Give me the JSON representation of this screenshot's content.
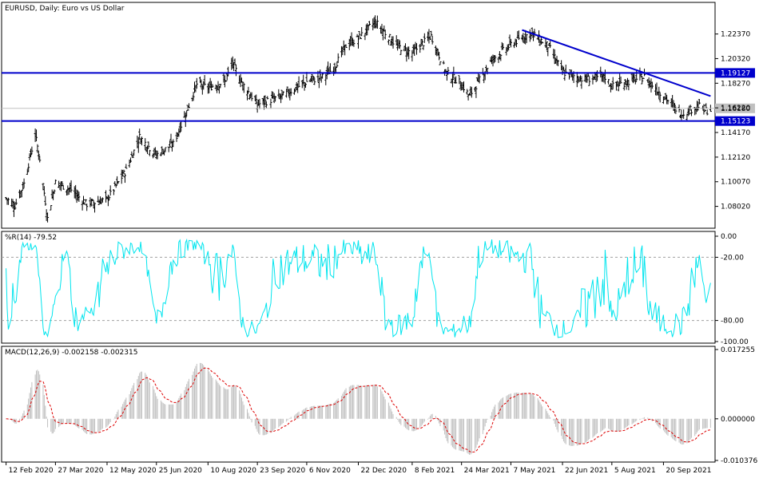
{
  "chart_data": [
    {
      "type": "ohlc",
      "title": "EURUSD, Daily:  Euro vs US Dollar",
      "ylim": [
        1.062,
        1.25
      ],
      "y_ticks": [
        "1.22370",
        "1.20320",
        "1.18270",
        "1.16220",
        "1.14170",
        "1.12120",
        "1.10070",
        "1.08020"
      ],
      "x_ticks": [
        "12 Feb 2020",
        "27 Mar 2020",
        "12 May 2020",
        "25 Jun 2020",
        "10 Aug 2020",
        "23 Sep 2020",
        "6 Nov 2020",
        "22 Dec 2020",
        "8 Feb 2021",
        "24 Mar 2021",
        "7 May 2021",
        "22 Jun 2021",
        "5 Aug 2021",
        "20 Sep 2021"
      ],
      "series": [
        {
          "close_path": [
            [
              "12 Feb 2020",
              1.087
            ],
            [
              "20 Feb 2020",
              1.081
            ],
            [
              "28 Feb 2020",
              1.099
            ],
            [
              "9 Mar 2020",
              1.14
            ],
            [
              "13 Mar 2020",
              1.12
            ],
            [
              "20 Mar 2020",
              1.07
            ],
            [
              "27 Mar 2020",
              1.1
            ],
            [
              "10 Apr 2020",
              1.094
            ],
            [
              "24 Apr 2020",
              1.082
            ],
            [
              "12 May 2020",
              1.086
            ],
            [
              "29 May 2020",
              1.11
            ],
            [
              "10 Jun 2020",
              1.138
            ],
            [
              "25 Jun 2020",
              1.123
            ],
            [
              "10 Jul 2020",
              1.132
            ],
            [
              "22 Jul 2020",
              1.159
            ],
            [
              "31 Jul 2020",
              1.182
            ],
            [
              "10 Aug 2020",
              1.179
            ],
            [
              "25 Aug 2020",
              1.184
            ],
            [
              "1 Sep 2020",
              1.199
            ],
            [
              "10 Sep 2020",
              1.182
            ],
            [
              "23 Sep 2020",
              1.165
            ],
            [
              "15 Oct 2020",
              1.172
            ],
            [
              "6 Nov 2020",
              1.184
            ],
            [
              "20 Nov 2020",
              1.188
            ],
            [
              "30 Nov 2020",
              1.195
            ],
            [
              "11 Dec 2020",
              1.214
            ],
            [
              "22 Dec 2020",
              1.22
            ],
            [
              "6 Jan 2021",
              1.234
            ],
            [
              "25 Jan 2021",
              1.214
            ],
            [
              "8 Feb 2021",
              1.208
            ],
            [
              "25 Feb 2021",
              1.222
            ],
            [
              "10 Mar 2021",
              1.192
            ],
            [
              "24 Mar 2021",
              1.182
            ],
            [
              "31 Mar 2021",
              1.172
            ],
            [
              "20 Apr 2021",
              1.202
            ],
            [
              "7 May 2021",
              1.215
            ],
            [
              "25 May 2021",
              1.225
            ],
            [
              "10 Jun 2021",
              1.213
            ],
            [
              "22 Jun 2021",
              1.192
            ],
            [
              "10 Jul 2021",
              1.186
            ],
            [
              "30 Jul 2021",
              1.188
            ],
            [
              "5 Aug 2021",
              1.18
            ],
            [
              "3 Sep 2021",
              1.188
            ],
            [
              "20 Sep 2021",
              1.172
            ],
            [
              "6 Oct 2021",
              1.157
            ],
            [
              "21 Oct 2021",
              1.164
            ],
            [
              "28 Oct 2021",
              1.16
            ]
          ]
        }
      ],
      "horizontal_lines": [
        {
          "label": "1.19127",
          "value": 1.19127,
          "color": "#0000cc"
        },
        {
          "label": "1.15123",
          "value": 1.15123,
          "color": "#0000cc"
        }
      ],
      "trendline": {
        "from": [
          "17 May 2021",
          1.227
        ],
        "to": [
          "1 Nov 2021",
          1.172
        ],
        "color": "#0000cc"
      },
      "price_tags": [
        {
          "value": 1.1618,
          "color": "#c0c0c0",
          "label": "1.16180"
        }
      ]
    },
    {
      "type": "line",
      "title": "%R(14) -79.52",
      "ylim": [
        -100,
        0
      ],
      "y_ticks": [
        "0.00",
        "-20.00",
        "-80.00",
        "-100.00"
      ],
      "levels": [
        -20,
        -80
      ],
      "color": "#00e5ee"
    },
    {
      "type": "histogram+line",
      "title": "MACD(12,26,9) -0.002158 -0.002315",
      "ylim": [
        -0.010376,
        0.017255
      ],
      "y_ticks": [
        "0.017255",
        "0.000000",
        "-0.010376"
      ],
      "series": [
        {
          "name": "MACD",
          "type": "histogram",
          "color": "#c0c0c0"
        },
        {
          "name": "Signal",
          "type": "line",
          "color": "#dd0000"
        }
      ]
    }
  ]
}
